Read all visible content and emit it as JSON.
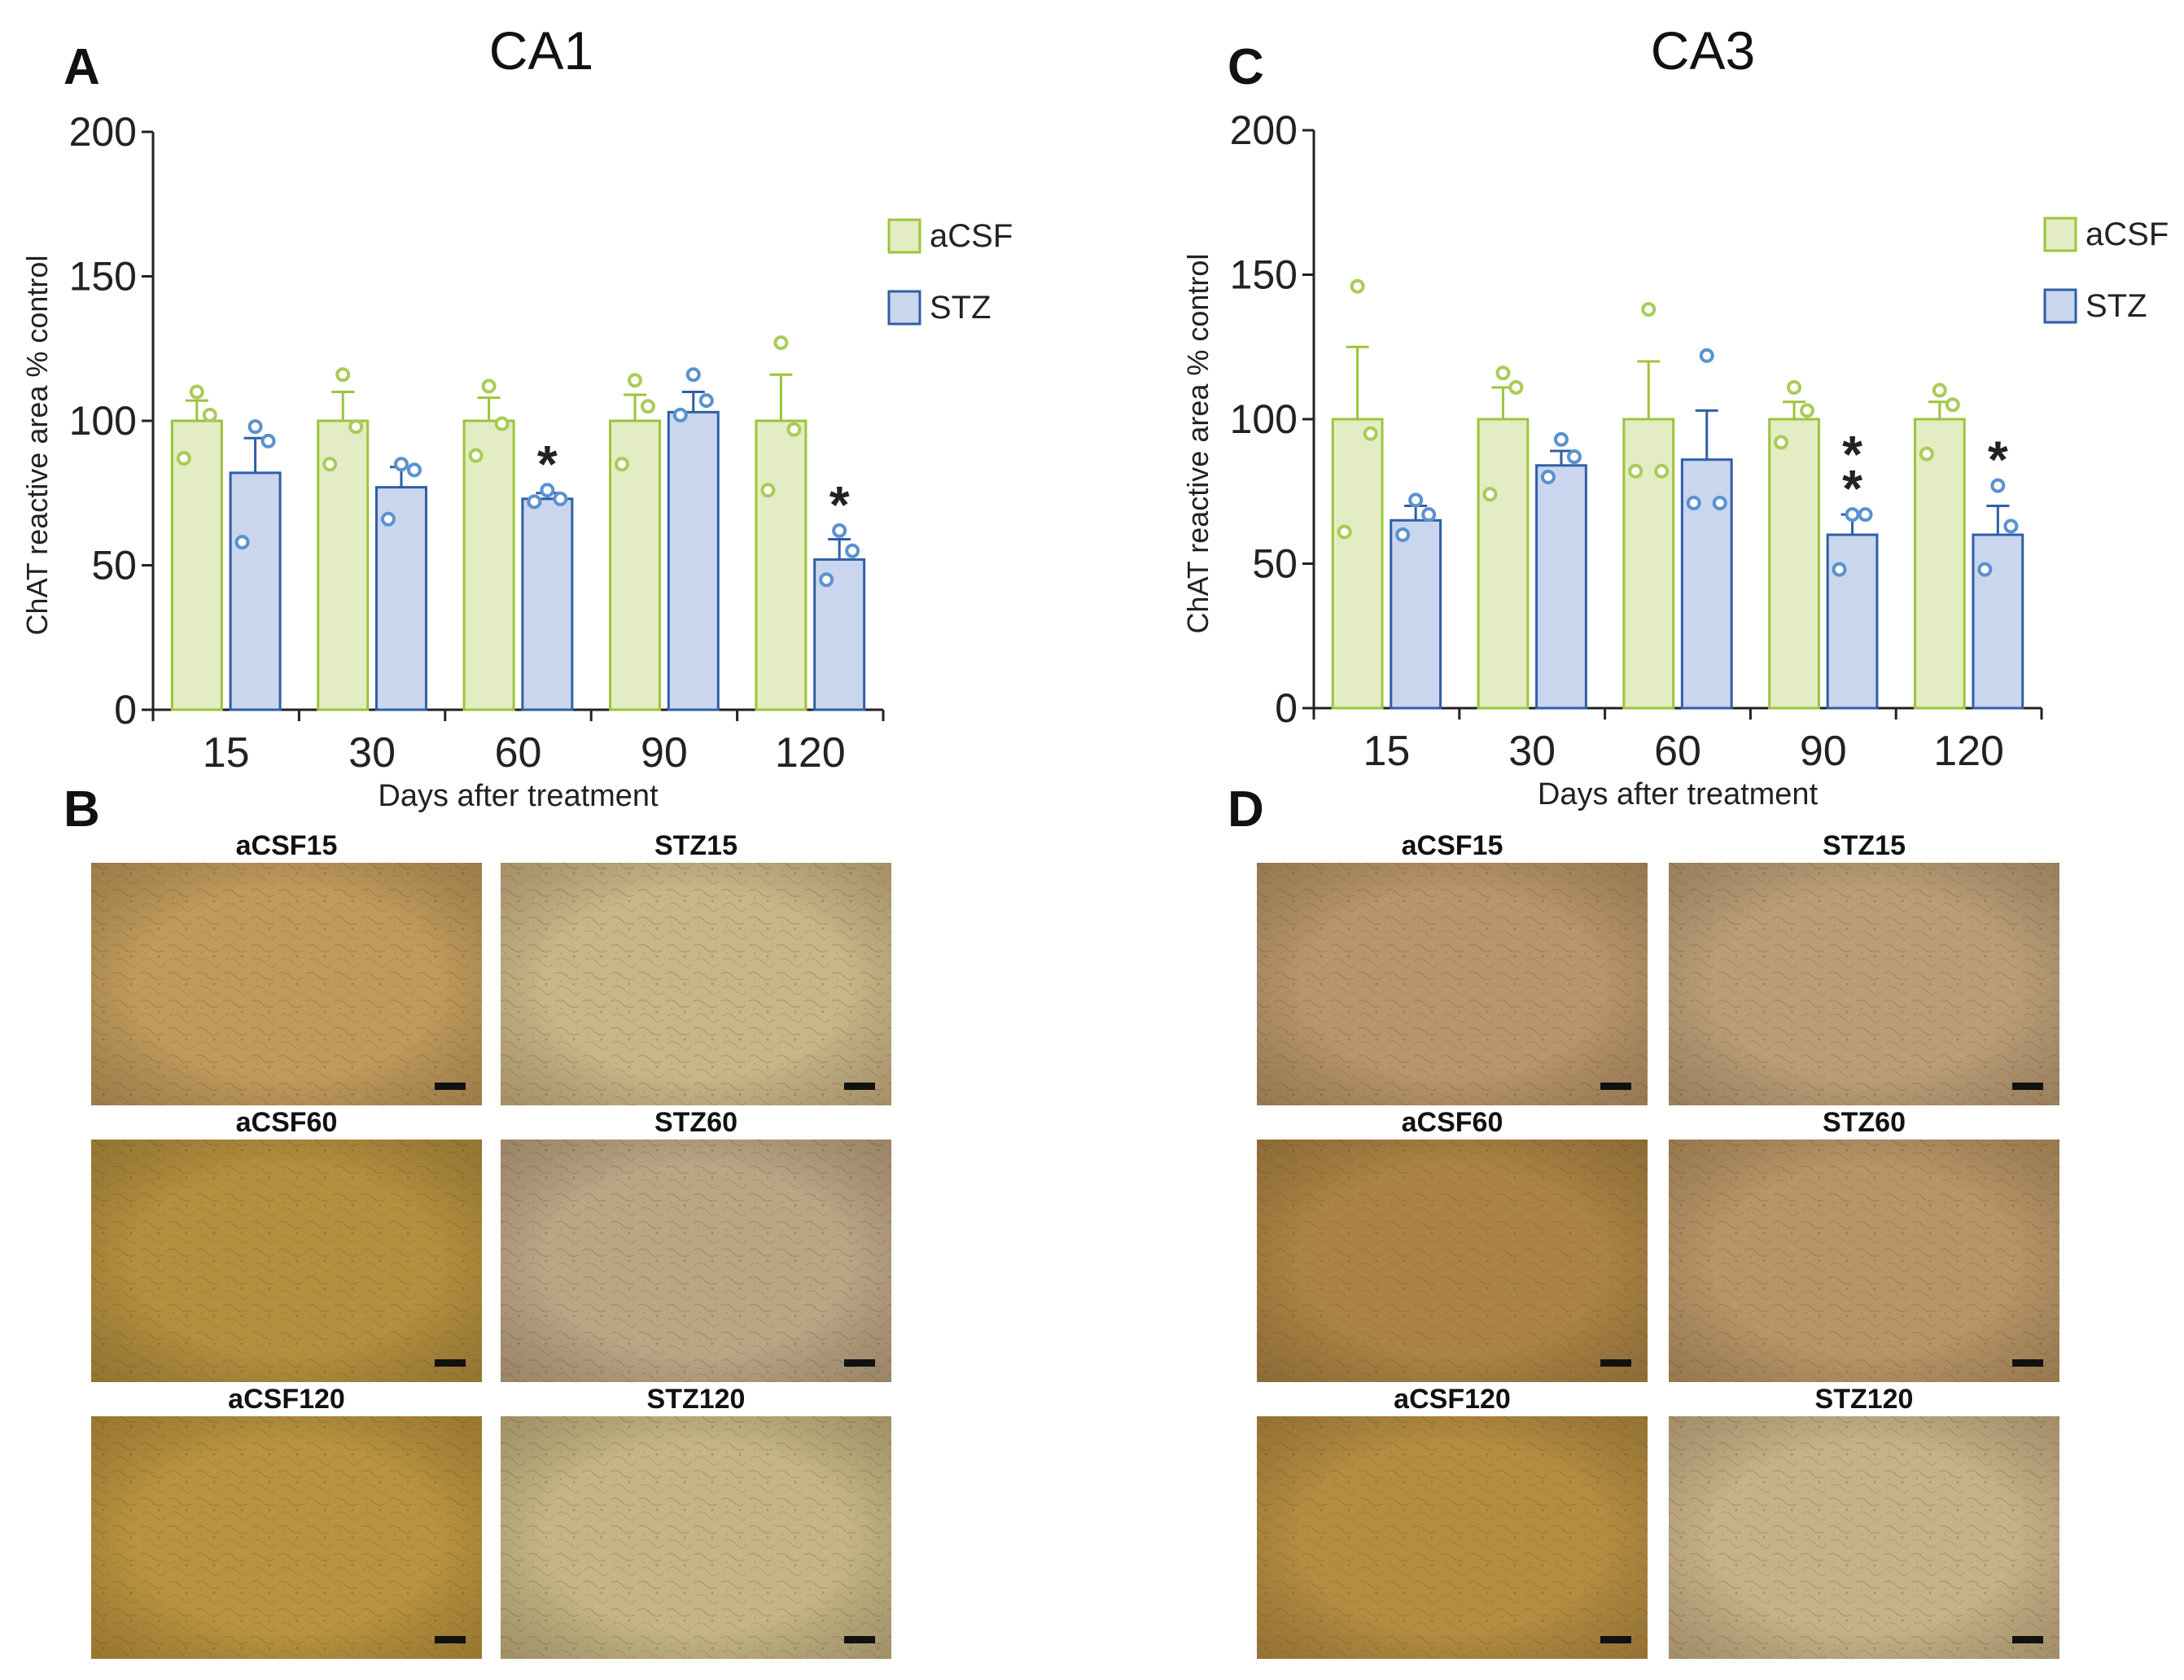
{
  "figure": {
    "panel_letters": {
      "A": "A",
      "B": "B",
      "C": "C",
      "D": "D"
    },
    "micrograph_panels": [
      {
        "id": "B",
        "images": [
          {
            "label": "aCSF15",
            "tone": "#bf9a5c",
            "scale_bar": true
          },
          {
            "label": "STZ15",
            "tone": "#c8b588",
            "scale_bar": true
          },
          {
            "label": "aCSF60",
            "tone": "#b3903f",
            "scale_bar": true
          },
          {
            "label": "STZ60",
            "tone": "#bba585",
            "scale_bar": true
          },
          {
            "label": "aCSF120",
            "tone": "#b9933f",
            "scale_bar": true
          },
          {
            "label": "STZ120",
            "tone": "#c5b585",
            "scale_bar": true
          }
        ]
      },
      {
        "id": "D",
        "images": [
          {
            "label": "aCSF15",
            "tone": "#b8956a",
            "scale_bar": true
          },
          {
            "label": "STZ15",
            "tone": "#bb9e78",
            "scale_bar": true
          },
          {
            "label": "aCSF60",
            "tone": "#ab8445",
            "scale_bar": true
          },
          {
            "label": "STZ60",
            "tone": "#b89566",
            "scale_bar": true
          },
          {
            "label": "aCSF120",
            "tone": "#b58d42",
            "scale_bar": true
          },
          {
            "label": "STZ120",
            "tone": "#c6b288",
            "scale_bar": true
          }
        ]
      }
    ]
  },
  "colors": {
    "acsf_fill": "#e3ecc3",
    "acsf_stroke": "#9cc43a",
    "stz_fill": "#c9d6ee",
    "stz_stroke": "#2f5fa6",
    "acsf_point": "#a9cc58",
    "stz_point": "#5b91cf",
    "axis": "#222222"
  },
  "chart_data": [
    {
      "id": "A",
      "type": "bar",
      "title": "CA1",
      "xlabel": "Days after treatment",
      "ylabel": "ChAT reactive area % control",
      "categories": [
        "15",
        "30",
        "60",
        "90",
        "120"
      ],
      "ylim": [
        0,
        200
      ],
      "yticks": [
        0,
        50,
        100,
        150,
        200
      ],
      "legend": {
        "position": "top-right",
        "entries": [
          "aCSF",
          "STZ"
        ]
      },
      "series": [
        {
          "name": "aCSF",
          "values": [
            100,
            100,
            100,
            100,
            100
          ],
          "sem": [
            7,
            10,
            8,
            9,
            16
          ],
          "points": [
            [
              110,
              102,
              87
            ],
            [
              116,
              98,
              85
            ],
            [
              112,
              99,
              88
            ],
            [
              114,
              105,
              85
            ],
            [
              127,
              97,
              76
            ]
          ]
        },
        {
          "name": "STZ",
          "values": [
            82,
            77,
            73,
            103,
            52
          ],
          "sem": [
            12,
            7,
            2,
            7,
            7
          ],
          "points": [
            [
              98,
              93,
              58
            ],
            [
              85,
              83,
              66
            ],
            [
              76,
              73,
              72
            ],
            [
              116,
              107,
              102
            ],
            [
              62,
              55,
              45
            ]
          ]
        }
      ],
      "significance": [
        "",
        "",
        "*",
        "",
        "*"
      ]
    },
    {
      "id": "C",
      "type": "bar",
      "title": "CA3",
      "xlabel": "Days after treatment",
      "ylabel": "ChAT reactive area % control",
      "categories": [
        "15",
        "30",
        "60",
        "90",
        "120"
      ],
      "ylim": [
        0,
        200
      ],
      "yticks": [
        0,
        50,
        100,
        150,
        200
      ],
      "legend": {
        "position": "top-right",
        "entries": [
          "aCSF",
          "STZ"
        ]
      },
      "series": [
        {
          "name": "aCSF",
          "values": [
            100,
            100,
            100,
            100,
            100
          ],
          "sem": [
            25,
            11,
            20,
            6,
            6
          ],
          "points": [
            [
              146,
              95,
              61
            ],
            [
              116,
              111,
              74
            ],
            [
              138,
              82,
              82
            ],
            [
              111,
              103,
              92
            ],
            [
              110,
              105,
              88
            ]
          ]
        },
        {
          "name": "STZ",
          "values": [
            65,
            84,
            86,
            60,
            60
          ],
          "sem": [
            5,
            5,
            17,
            7,
            10
          ],
          "points": [
            [
              72,
              67,
              60
            ],
            [
              93,
              87,
              80
            ],
            [
              122,
              71,
              71
            ],
            [
              67,
              67,
              48
            ],
            [
              77,
              63,
              48
            ]
          ]
        }
      ],
      "significance": [
        "",
        "",
        "",
        "**",
        "*"
      ]
    }
  ]
}
